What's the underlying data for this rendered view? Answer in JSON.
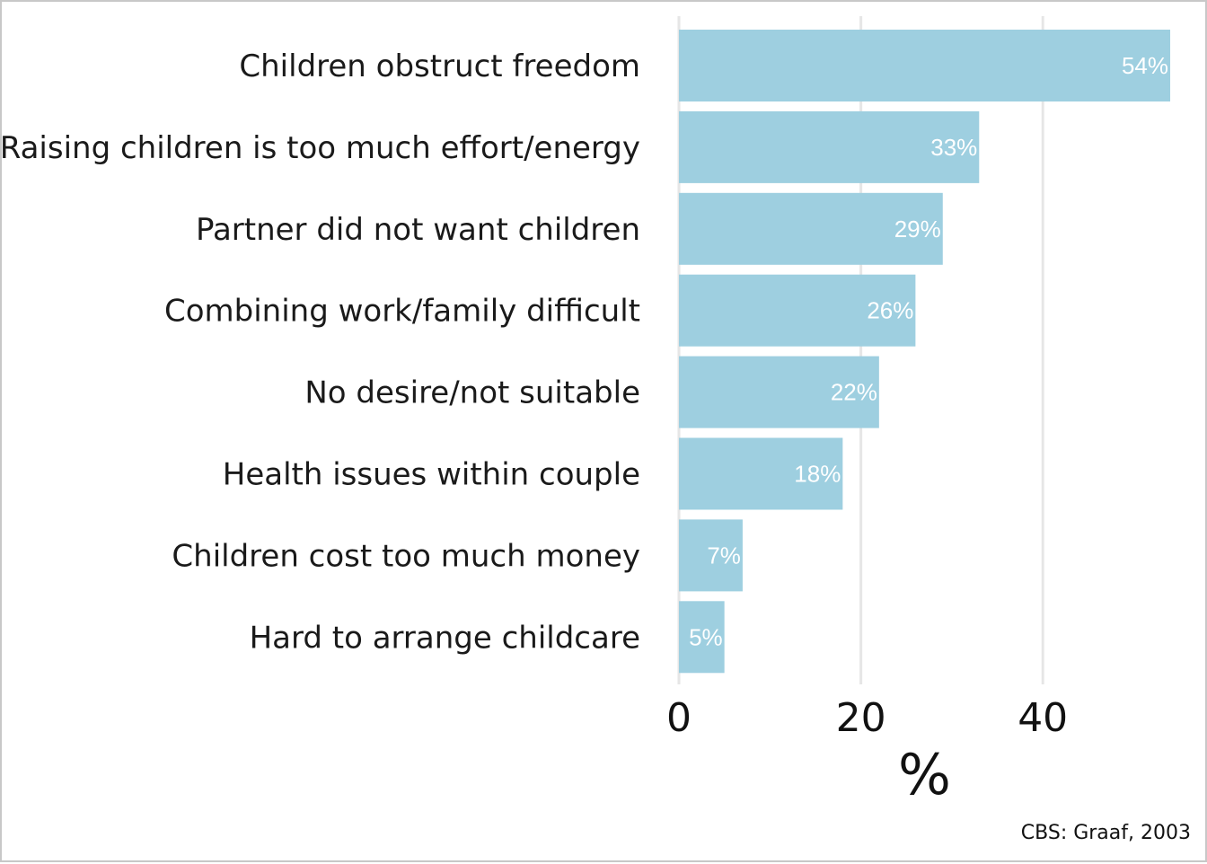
{
  "chart_data": {
    "type": "bar",
    "orientation": "horizontal",
    "categories": [
      "Children obstruct freedom",
      "Raising children is too much effort/energy",
      "Partner did not want children",
      "Combining work/family difficult",
      "No desire/not suitable",
      "Health issues within couple",
      "Children cost too much money",
      "Hard to arrange childcare"
    ],
    "values": [
      54,
      33,
      29,
      26,
      22,
      18,
      7,
      5
    ],
    "value_labels": [
      "54%",
      "33%",
      "29%",
      "26%",
      "22%",
      "18%",
      "7%",
      "5%"
    ],
    "xlabel": "%",
    "ylabel": "",
    "xlim": [
      0,
      54
    ],
    "xticks": [
      0,
      20,
      40
    ],
    "xtick_labels": [
      "0",
      "20",
      "40"
    ],
    "grid": true,
    "legend": "none",
    "colors": {
      "bar": "#9ecfe0",
      "grid": "#e6e6e6",
      "text": "#111111",
      "value_label": "#ffffff",
      "frame": "#c8c8c8"
    }
  },
  "source": "CBS: Graaf, 2003"
}
